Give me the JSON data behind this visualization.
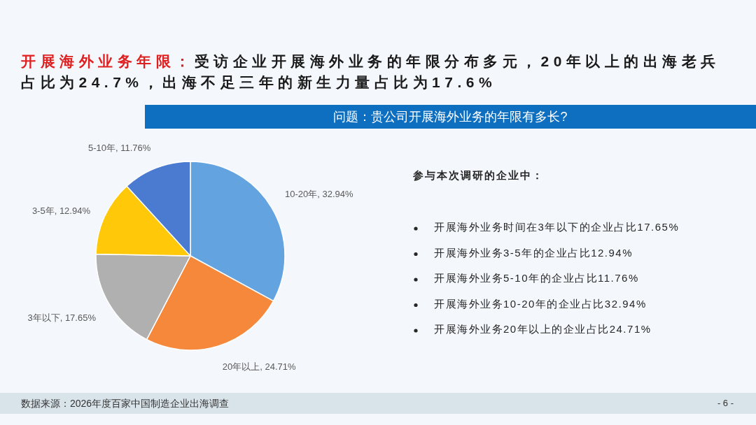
{
  "chart_data": [
    {
      "type": "pie",
      "title": "开展海外业务年限：受访企业开展海外业务的年限分布多元，20年以上的出海老兵占比为24.7%，出海不足三年的新生力量占比为17.6%",
      "subtitle": "问题：贵公司开展海外业务的年限有多长?",
      "categories": [
        "10-20年",
        "20年以上",
        "3年以下",
        "3-5年",
        "5-10年"
      ],
      "values": [
        32.94,
        24.71,
        17.65,
        12.94,
        11.76
      ],
      "colors": [
        "#62a3e0",
        "#f5883a",
        "#b0b0b0",
        "#ffc90a",
        "#4a7bd0"
      ],
      "value_labels": [
        "32.94%",
        "24.71%",
        "17.65%",
        "12.94%",
        "11.76%"
      ],
      "annotations": [
        "数据来源：2026年度百家中国制造企业出海调查",
        "- 6 -"
      ]
    },
    {
      "type": "other",
      "title": "参与本次调研的企业中：",
      "annotations": [
        "开展海外业务时间在3年以下的企业占比17.65%",
        "开展海外业务3-5年的企业占比12.94%",
        "开展海外业务5-10年的企业占比11.76%",
        "开展海外业务10-20年的企业占比32.94%",
        "开展海外业务20年以上的企业占比24.71%"
      ]
    }
  ]
}
